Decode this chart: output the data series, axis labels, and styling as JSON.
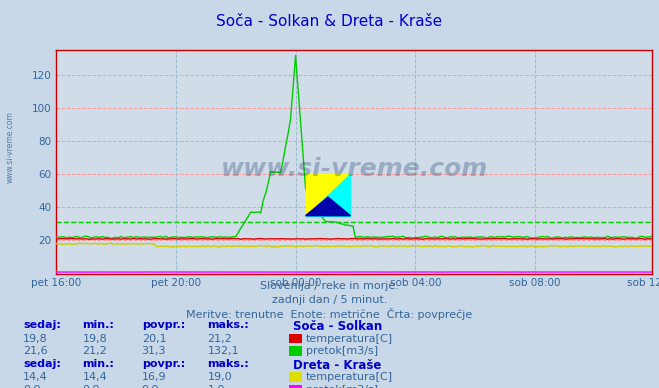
{
  "title": "Soča - Solkan & Dreta - Kraše",
  "title_color": "#0000cc",
  "bg_color": "#c8d8e8",
  "plot_bg_color": "#d0dce8",
  "grid_h_color": "#ff9999",
  "grid_v_color": "#99bbcc",
  "ylim": [
    0,
    135
  ],
  "yticks": [
    20,
    40,
    60,
    80,
    100,
    120
  ],
  "xlabel_color": "#336699",
  "xtick_labels": [
    "pet 16:00",
    "pet 20:00",
    "sob 00:00",
    "sob 04:00",
    "sob 08:00",
    "sob 12:00"
  ],
  "n_points": 288,
  "soca_temp_color": "#dd0000",
  "soca_flow_color": "#00cc00",
  "dreta_temp_color": "#cccc00",
  "dreta_flow_color": "#ff00ff",
  "avg_line_color": "#00cc00",
  "watermark": "www.si-vreme.com",
  "subtitle1": "Slovenija / reke in morje.",
  "subtitle2": "zadnji dan / 5 minut.",
  "subtitle3": "Meritve: trenutne  Enote: metrične  Črta: povprečje",
  "subtitle_color": "#336699",
  "table_header_color": "#0000cc",
  "table_value_color": "#336699",
  "table_label_color": "#0000cc",
  "swatch_soca_temp": "#dd0000",
  "swatch_soca_flow": "#00cc00",
  "swatch_dreta_temp": "#dddd00",
  "swatch_dreta_flow": "#ff00ff",
  "soca_flow_avg": 31.3,
  "figsize": [
    6.59,
    3.88
  ],
  "dpi": 100
}
